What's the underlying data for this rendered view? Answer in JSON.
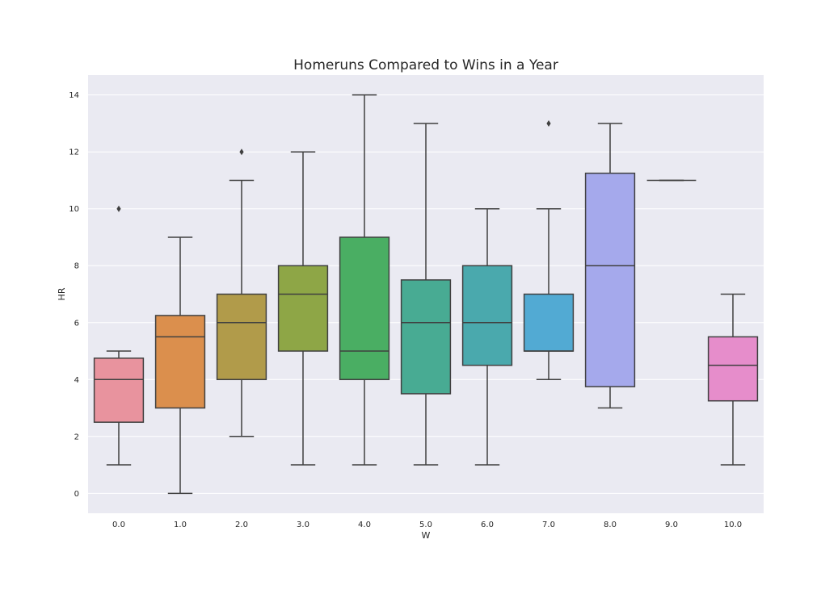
{
  "chart_data": {
    "type": "box",
    "title": "Homeruns Compared to Wins in a Year",
    "xlabel": "W",
    "ylabel": "HR",
    "ylim": [
      -0.7,
      14.7
    ],
    "yticks": [
      0,
      2,
      4,
      6,
      8,
      10,
      12,
      14
    ],
    "grid": true,
    "background": "#eaeaf2",
    "categories": [
      "0.0",
      "1.0",
      "2.0",
      "3.0",
      "4.0",
      "5.0",
      "6.0",
      "7.0",
      "8.0",
      "9.0",
      "10.0"
    ],
    "boxes": [
      {
        "category": "0.0",
        "whisker_low": 1,
        "q1": 2.5,
        "median": 4,
        "q3": 4.75,
        "whisker_high": 5,
        "outliers": [
          10
        ],
        "color": "#e8939e"
      },
      {
        "category": "1.0",
        "whisker_low": 0,
        "q1": 3,
        "median": 5.5,
        "q3": 6.25,
        "whisker_high": 9,
        "outliers": [],
        "color": "#db8f4d"
      },
      {
        "category": "2.0",
        "whisker_low": 2,
        "q1": 4,
        "median": 6,
        "q3": 7,
        "whisker_high": 11,
        "outliers": [
          12
        ],
        "color": "#b19b4a"
      },
      {
        "category": "3.0",
        "whisker_low": 1,
        "q1": 5,
        "median": 7,
        "q3": 8,
        "whisker_high": 12,
        "outliers": [],
        "color": "#8ea646"
      },
      {
        "category": "4.0",
        "whisker_low": 1,
        "q1": 4,
        "median": 5,
        "q3": 9,
        "whisker_high": 14,
        "outliers": [],
        "color": "#4aae63"
      },
      {
        "category": "5.0",
        "whisker_low": 1,
        "q1": 3.5,
        "median": 6,
        "q3": 7.5,
        "whisker_high": 13,
        "outliers": [],
        "color": "#48ab93"
      },
      {
        "category": "6.0",
        "whisker_low": 1,
        "q1": 4.5,
        "median": 6,
        "q3": 8,
        "whisker_high": 10,
        "outliers": [],
        "color": "#4aa9ad"
      },
      {
        "category": "7.0",
        "whisker_low": 4,
        "q1": 5,
        "median": 5,
        "q3": 7,
        "whisker_high": 10,
        "outliers": [
          13
        ],
        "color": "#52aad3"
      },
      {
        "category": "8.0",
        "whisker_low": 3,
        "q1": 3.75,
        "median": 8,
        "q3": 11.25,
        "whisker_high": 13,
        "outliers": [],
        "color": "#a5a9ec"
      },
      {
        "category": "9.0",
        "whisker_low": 11,
        "q1": 11,
        "median": 11,
        "q3": 11,
        "whisker_high": 11,
        "outliers": [],
        "color": "#c98fe0"
      },
      {
        "category": "10.0",
        "whisker_low": 1,
        "q1": 3.25,
        "median": 4.5,
        "q3": 5.5,
        "whisker_high": 7,
        "outliers": [],
        "color": "#e68dcb"
      }
    ],
    "line_color": "#404040"
  }
}
